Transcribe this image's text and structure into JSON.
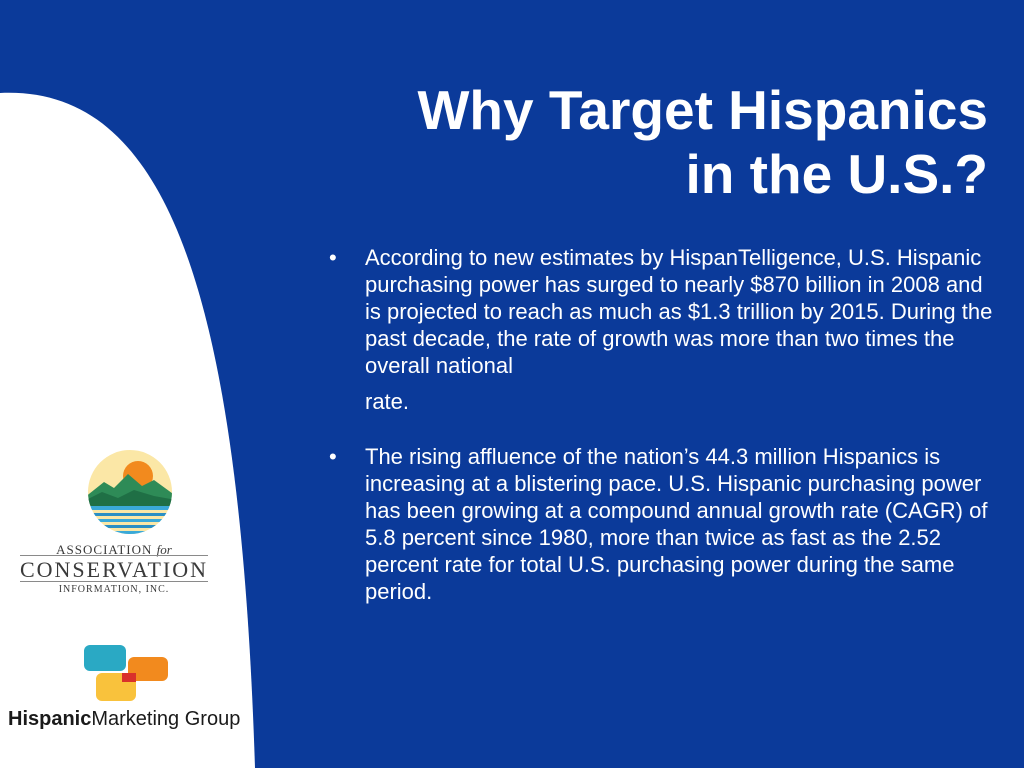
{
  "slide": {
    "title_line1": "Why Target Hispanics",
    "title_line2": "in the U.S.?",
    "bullets": [
      {
        "text": "According to new estimates by HispanTelligence, U.S. Hispanic purchasing power has surged to nearly $870 billion in 2008 and is projected to reach as much as $1.3 trillion by 2015.  During the past decade, the rate of growth was more than two times the overall national",
        "tail": "rate."
      },
      {
        "text": "The rising affluence of the nation’s 44.3 million Hispanics is increasing at a blistering pace. U.S. Hispanic purchasing power has been growing at a compound annual growth rate (CAGR) of 5.8 percent since 1980, more than twice as fast as the 2.52 percent rate for total U.S. purchasing power during the same period."
      }
    ],
    "bullet_glyph": "•"
  },
  "logos": {
    "aci": {
      "line1_prefix": "ASSOCIATION",
      "line1_for": "for",
      "line2": "CONSERVATION",
      "line3": "INFORMATION, INC."
    },
    "hmg": {
      "name_bold": "Hispanic",
      "name_regular": "Marketing Group"
    }
  },
  "colors": {
    "background_blue": "#0b3a9a",
    "panel_white": "#ffffff",
    "text": "#ffffff"
  },
  "icons": {
    "aci_emblem": "sun-mountain-lake-emblem",
    "hmg_mark": "colored-tiles-mark"
  }
}
